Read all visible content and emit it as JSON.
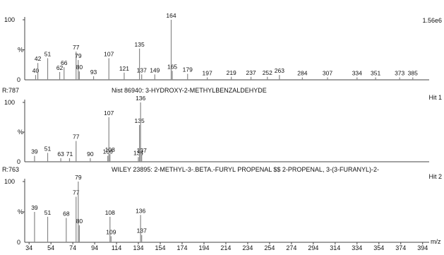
{
  "chart_data": {
    "type": "bar",
    "xlabel": "m/z",
    "xlim": [
      30,
      400
    ],
    "xticks": [
      34,
      54,
      74,
      94,
      114,
      134,
      154,
      174,
      194,
      214,
      234,
      254,
      274,
      294,
      314,
      334,
      354,
      374,
      394
    ],
    "panels": [
      {
        "y_top_label": "100",
        "y_mid_label": "%",
        "y_zero_label": "0",
        "ylim": [
          0,
          100
        ],
        "right_label": "1.56e6",
        "peaks": [
          {
            "x": 40,
            "y": 8,
            "label": "40"
          },
          {
            "x": 42,
            "y": 28,
            "label": "42"
          },
          {
            "x": 51,
            "y": 36,
            "label": "51"
          },
          {
            "x": 62,
            "y": 13,
            "label": "62"
          },
          {
            "x": 66,
            "y": 21,
            "label": "66"
          },
          {
            "x": 77,
            "y": 47,
            "label": "77"
          },
          {
            "x": 79,
            "y": 33,
            "label": "79"
          },
          {
            "x": 80,
            "y": 14,
            "label": "80"
          },
          {
            "x": 93,
            "y": 6,
            "label": "93"
          },
          {
            "x": 107,
            "y": 36,
            "label": "107"
          },
          {
            "x": 121,
            "y": 12,
            "label": "121"
          },
          {
            "x": 135,
            "y": 52,
            "label": "135"
          },
          {
            "x": 137,
            "y": 9,
            "label": "137"
          },
          {
            "x": 149,
            "y": 9,
            "label": "149"
          },
          {
            "x": 164,
            "y": 100,
            "label": "164"
          },
          {
            "x": 165,
            "y": 15,
            "label": "165"
          },
          {
            "x": 179,
            "y": 10,
            "label": "179"
          },
          {
            "x": 197,
            "y": 4,
            "label": "197"
          },
          {
            "x": 219,
            "y": 5,
            "label": "219"
          },
          {
            "x": 237,
            "y": 5,
            "label": "237"
          },
          {
            "x": 252,
            "y": 5,
            "label": "252"
          },
          {
            "x": 263,
            "y": 8,
            "label": "263"
          },
          {
            "x": 284,
            "y": 4,
            "label": "284"
          },
          {
            "x": 307,
            "y": 4,
            "label": "307"
          },
          {
            "x": 334,
            "y": 4,
            "label": "334"
          },
          {
            "x": 351,
            "y": 4,
            "label": "351"
          },
          {
            "x": 373,
            "y": 4,
            "label": "373"
          },
          {
            "x": 385,
            "y": 4,
            "label": "385"
          }
        ]
      },
      {
        "y_top_label": "100",
        "y_mid_label": "%",
        "y_zero_label": "0",
        "ylim": [
          0,
          100
        ],
        "left_label": "R:787",
        "title": "Nist  86940: 3-HYDROXY-2-METHYLBENZALDEHYDE",
        "right_label": "Hit 1",
        "peaks": [
          {
            "x": 39,
            "y": 10,
            "label": "39"
          },
          {
            "x": 51,
            "y": 15,
            "label": "51"
          },
          {
            "x": 63,
            "y": 6,
            "label": "63"
          },
          {
            "x": 71,
            "y": 6,
            "label": "71"
          },
          {
            "x": 77,
            "y": 35,
            "label": "77"
          },
          {
            "x": 90,
            "y": 6,
            "label": "90"
          },
          {
            "x": 106,
            "y": 10,
            "label": "106"
          },
          {
            "x": 107,
            "y": 75,
            "label": "107"
          },
          {
            "x": 108,
            "y": 13,
            "label": "108"
          },
          {
            "x": 134,
            "y": 8,
            "label": "134"
          },
          {
            "x": 135,
            "y": 62,
            "label": "135"
          },
          {
            "x": 136,
            "y": 100,
            "label": "136"
          },
          {
            "x": 137,
            "y": 12,
            "label": "137"
          }
        ]
      },
      {
        "y_top_label": "100",
        "y_mid_label": "%",
        "y_zero_label": "0",
        "ylim": [
          0,
          100
        ],
        "left_label": "R:763",
        "title": "WILEY  23895: 2-METHYL-3-.BETA.-FURYL PROPENAL $$ 2-PROPENAL, 3-(3-FURANYL)-2-",
        "right_label": "Hit 2",
        "peaks": [
          {
            "x": 39,
            "y": 50,
            "label": "39"
          },
          {
            "x": 51,
            "y": 42,
            "label": "51"
          },
          {
            "x": 68,
            "y": 40,
            "label": "68"
          },
          {
            "x": 77,
            "y": 75,
            "label": "77"
          },
          {
            "x": 79,
            "y": 100,
            "label": "79"
          },
          {
            "x": 80,
            "y": 28,
            "label": "80"
          },
          {
            "x": 108,
            "y": 42,
            "label": "108"
          },
          {
            "x": 109,
            "y": 10,
            "label": "109"
          },
          {
            "x": 136,
            "y": 45,
            "label": "136"
          },
          {
            "x": 137,
            "y": 12,
            "label": "137"
          }
        ]
      }
    ]
  }
}
